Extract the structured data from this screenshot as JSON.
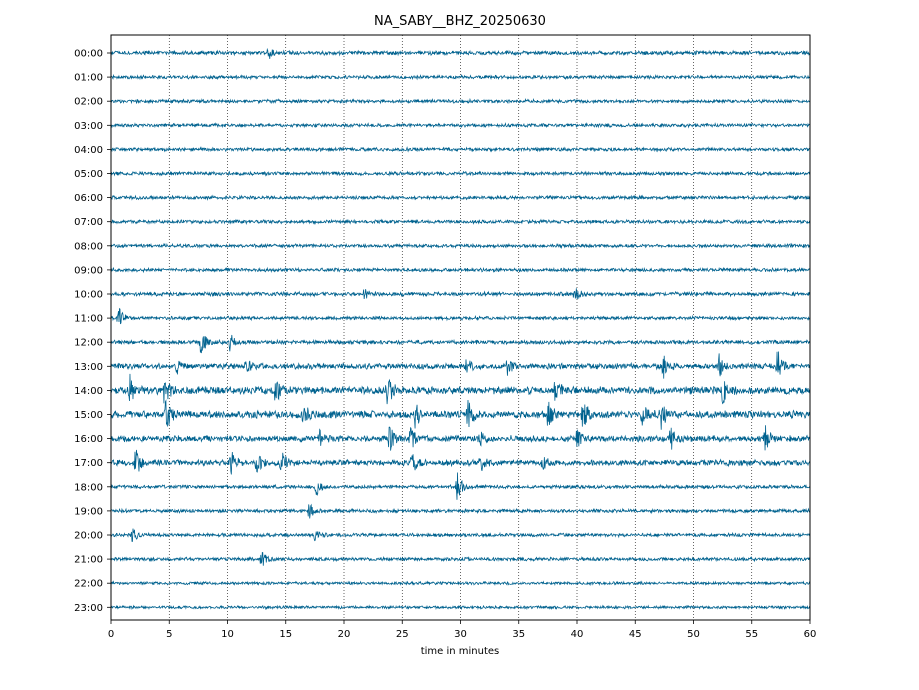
{
  "chart_data": {
    "type": "line",
    "title": "NA_SABY__BHZ_20250630",
    "xlabel": "time in minutes",
    "ylabel": "",
    "xlim": [
      0,
      60
    ],
    "x_ticks": [
      0,
      5,
      10,
      15,
      20,
      25,
      30,
      35,
      40,
      45,
      50,
      55,
      60
    ],
    "grid": "vertical dotted lines every 5 minutes",
    "trace_color": "#00628f",
    "rows": [
      {
        "label": "00:00",
        "noise": 0.7,
        "events": [
          [
            13.5,
            1.0
          ]
        ]
      },
      {
        "label": "01:00",
        "noise": 0.6,
        "events": []
      },
      {
        "label": "02:00",
        "noise": 0.6,
        "events": []
      },
      {
        "label": "03:00",
        "noise": 0.6,
        "events": []
      },
      {
        "label": "04:00",
        "noise": 0.6,
        "events": []
      },
      {
        "label": "05:00",
        "noise": 0.6,
        "events": []
      },
      {
        "label": "06:00",
        "noise": 0.6,
        "events": []
      },
      {
        "label": "07:00",
        "noise": 0.6,
        "events": []
      },
      {
        "label": "08:00",
        "noise": 0.6,
        "events": []
      },
      {
        "label": "09:00",
        "noise": 0.6,
        "events": []
      },
      {
        "label": "10:00",
        "noise": 0.7,
        "events": [
          [
            21.7,
            1.2
          ],
          [
            39.8,
            1.3
          ]
        ]
      },
      {
        "label": "11:00",
        "noise": 0.6,
        "events": [
          [
            0.6,
            2.3
          ]
        ]
      },
      {
        "label": "12:00",
        "noise": 0.7,
        "events": [
          [
            7.7,
            2.5
          ],
          [
            10.2,
            1.6
          ]
        ]
      },
      {
        "label": "13:00",
        "noise": 1.0,
        "events": [
          [
            5.6,
            1.6
          ],
          [
            11.6,
            1.5
          ],
          [
            30.4,
            1.6
          ],
          [
            34.0,
            1.5
          ],
          [
            47.4,
            2.3
          ],
          [
            52.2,
            1.8
          ],
          [
            57.2,
            2.8
          ]
        ]
      },
      {
        "label": "14:00",
        "noise": 1.3,
        "events": [
          [
            1.6,
            2.5
          ],
          [
            4.6,
            2.8
          ],
          [
            14.1,
            2.0
          ],
          [
            23.7,
            2.6
          ],
          [
            38.1,
            2.2
          ],
          [
            52.5,
            2.4
          ]
        ]
      },
      {
        "label": "15:00",
        "noise": 1.3,
        "events": [
          [
            4.7,
            2.8
          ],
          [
            16.5,
            1.6
          ],
          [
            26.1,
            2.2
          ],
          [
            30.6,
            2.8
          ],
          [
            37.5,
            2.4
          ],
          [
            40.5,
            2.4
          ],
          [
            45.6,
            2.0
          ],
          [
            47.2,
            2.2
          ]
        ]
      },
      {
        "label": "16:00",
        "noise": 1.1,
        "events": [
          [
            17.9,
            1.4
          ],
          [
            23.9,
            2.5
          ],
          [
            25.7,
            2.5
          ],
          [
            31.6,
            1.8
          ],
          [
            40.0,
            1.5
          ],
          [
            48.0,
            2.4
          ],
          [
            56.1,
            2.4
          ]
        ]
      },
      {
        "label": "17:00",
        "noise": 1.0,
        "events": [
          [
            2.1,
            2.6
          ],
          [
            10.3,
            2.0
          ],
          [
            12.5,
            1.8
          ],
          [
            14.6,
            2.0
          ],
          [
            25.8,
            2.0
          ],
          [
            31.7,
            1.6
          ],
          [
            36.9,
            1.3
          ]
        ]
      },
      {
        "label": "18:00",
        "noise": 0.6,
        "events": [
          [
            17.6,
            1.5
          ],
          [
            29.7,
            2.8
          ]
        ]
      },
      {
        "label": "19:00",
        "noise": 0.6,
        "events": [
          [
            17.0,
            1.5
          ]
        ]
      },
      {
        "label": "20:00",
        "noise": 0.6,
        "events": [
          [
            1.8,
            1.3
          ],
          [
            17.5,
            1.0
          ]
        ]
      },
      {
        "label": "21:00",
        "noise": 0.6,
        "events": [
          [
            12.9,
            1.6
          ]
        ]
      },
      {
        "label": "22:00",
        "noise": 0.5,
        "events": []
      },
      {
        "label": "23:00",
        "noise": 0.5,
        "events": []
      }
    ]
  }
}
